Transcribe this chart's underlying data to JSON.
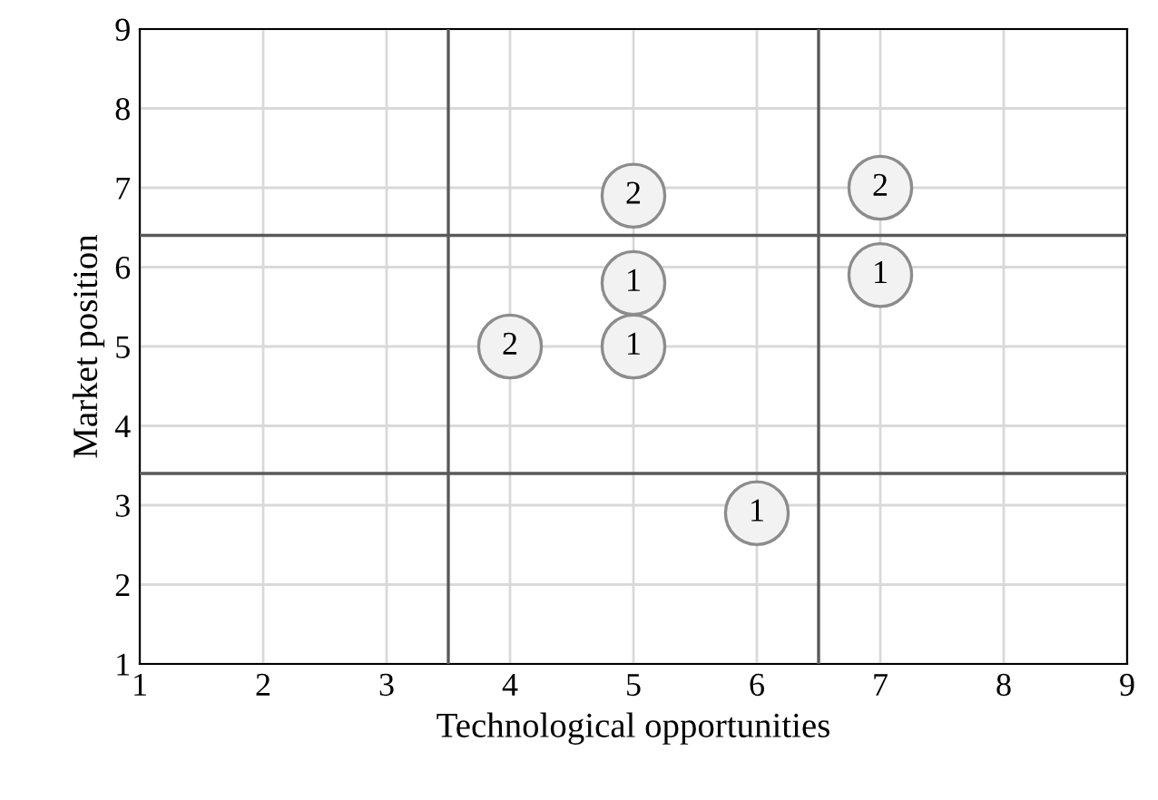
{
  "chart_data": {
    "type": "scatter",
    "xlabel": "Technological opportunities",
    "ylabel": "Market position",
    "x": [
      5,
      7,
      5,
      7,
      4,
      5,
      6
    ],
    "values": [
      6.9,
      7.0,
      5.8,
      5.9,
      5.0,
      5.0,
      2.9
    ],
    "annotations": [
      {
        "text": "2",
        "x": 5,
        "y": 6.9
      },
      {
        "text": "2",
        "x": 7,
        "y": 7.0
      },
      {
        "text": "1",
        "x": 5,
        "y": 5.8
      },
      {
        "text": "1",
        "x": 7,
        "y": 5.9
      },
      {
        "text": "2",
        "x": 4,
        "y": 5.0
      },
      {
        "text": "1",
        "x": 5,
        "y": 5.0
      },
      {
        "text": "1",
        "x": 6,
        "y": 2.9
      }
    ],
    "color": "#f2f2f2",
    "marker": "circle",
    "xlim": [
      1,
      9
    ],
    "ylim": [
      1,
      9
    ],
    "xticks": [
      1,
      2,
      3,
      4,
      5,
      6,
      7,
      8,
      9
    ],
    "yticks": [
      1,
      2,
      3,
      4,
      5,
      6,
      7,
      8,
      9
    ],
    "grid": true,
    "ref_lines": [
      {
        "axis": "x",
        "value": 3.5,
        "color": "#595959"
      },
      {
        "axis": "x",
        "value": 6.5,
        "color": "#595959"
      },
      {
        "axis": "y",
        "value": 6.4,
        "color": "#595959"
      },
      {
        "axis": "y",
        "value": 3.4,
        "color": "#595959"
      }
    ]
  }
}
